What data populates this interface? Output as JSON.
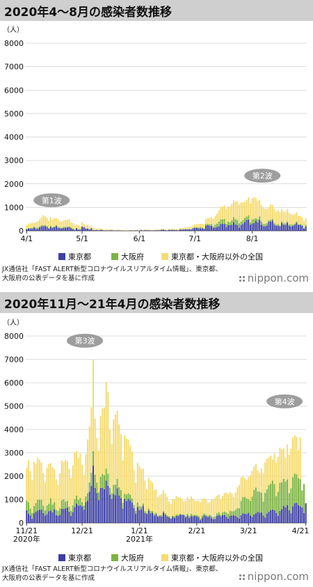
{
  "colors": {
    "tokyo": "#3d3fa3",
    "osaka": "#7cb342",
    "others": "#f5dc72",
    "title_bg": "#cfcfcf",
    "grid": "#bbbbbb"
  },
  "footer": {
    "source_1": "JX通信社「FAST ALERT新型コロナウイルスリアルタイム情報」、東京都、",
    "source_2": "大阪府の公表データを基に作成",
    "logo": "nippon.com"
  },
  "chart_data": [
    {
      "type": "bar",
      "stacked": true,
      "title": "2020年4～8月の感染者数推移",
      "ylabel": "（人）",
      "ylim": [
        0,
        8000
      ],
      "yticks": [
        "0",
        "1000",
        "2000",
        "3000",
        "4000",
        "5000",
        "6000",
        "7000",
        "8000"
      ],
      "xticks": [
        {
          "label": "4/1",
          "day": 0
        },
        {
          "label": "5/1",
          "day": 30
        },
        {
          "label": "6/1",
          "day": 61
        },
        {
          "label": "7/1",
          "day": 91
        },
        {
          "label": "8/1",
          "day": 122
        }
      ],
      "legend": [
        "東京都",
        "大阪府",
        "東京都・大阪府以外の全国"
      ],
      "annotations": [
        {
          "text": "第1波",
          "day": 14,
          "value": 1300
        },
        {
          "text": "第2波",
          "day": 128,
          "value": 2350
        }
      ],
      "series": [
        {
          "name": "東京都",
          "values": [
            66,
            97,
            89,
            84,
            143,
            83,
            79,
            144,
            181,
            189,
            197,
            166,
            91,
            161,
            127,
            149,
            201,
            123,
            107,
            102,
            123,
            132,
            134,
            161,
            103,
            72,
            39,
            112,
            47,
            46,
            165,
            154,
            91,
            87,
            57,
            104,
            26,
            28,
            36,
            16,
            41,
            30,
            10,
            15,
            11,
            16,
            24,
            13,
            9,
            15,
            10,
            11,
            5,
            8,
            2,
            5,
            14,
            11,
            8,
            17,
            13,
            5,
            34,
            12,
            28,
            20,
            26,
            12,
            13,
            18,
            22,
            25,
            24,
            47,
            48,
            27,
            16,
            41,
            35,
            39,
            29,
            31,
            14,
            57,
            55,
            54,
            60,
            58,
            57,
            48,
            107,
            124,
            131,
            111,
            102,
            106,
            75,
            224,
            243,
            206,
            206,
            119,
            143,
            165,
            188,
            290,
            293,
            293,
            168,
            237,
            238,
            260,
            366,
            266,
            238,
            131,
            248,
            286,
            367,
            463,
            472,
            258,
            309,
            331,
            429,
            360,
            462,
            258,
            197,
            188,
            222,
            389,
            385,
            429,
            260,
            206,
            220,
            188,
            339,
            258,
            247,
            339,
            212,
            186,
            207,
            256,
            339,
            236,
            250,
            212,
            95,
            182
          ]
        },
        {
          "name": "大阪府",
          "values": [
            25,
            10,
            34,
            41,
            27,
            52,
            48,
            41,
            59,
            55,
            46,
            38,
            24,
            50,
            24,
            32,
            42,
            54,
            38,
            21,
            40,
            27,
            44,
            22,
            44,
            25,
            11,
            8,
            20,
            16,
            23,
            8,
            18,
            24,
            10,
            3,
            6,
            0,
            2,
            3,
            4,
            5,
            1,
            6,
            1,
            2,
            4,
            1,
            0,
            2,
            3,
            1,
            0,
            0,
            0,
            1,
            2,
            0,
            1,
            1,
            1,
            0,
            0,
            0,
            2,
            2,
            3,
            0,
            0,
            3,
            1,
            1,
            0,
            3,
            0,
            1,
            2,
            4,
            3,
            6,
            4,
            1,
            2,
            2,
            2,
            6,
            3,
            9,
            22,
            19,
            14,
            33,
            11,
            25,
            45,
            24,
            24,
            62,
            49,
            72,
            85,
            66,
            123,
            141,
            207,
            204,
            193,
            211,
            131,
            150,
            129,
            187,
            216,
            222,
            225,
            188,
            141,
            172,
            185,
            145,
            182,
            88,
            177,
            175,
            110,
            131,
            151,
            139,
            99,
            96,
            108,
            66,
            83,
            79,
            65,
            56,
            59,
            43,
            58,
            60,
            66,
            58,
            55,
            86,
            47,
            52,
            66,
            42,
            39,
            43,
            22,
            69
          ]
        },
        {
          "name": "東京都・大阪府以外の全国",
          "values": [
            150,
            200,
            190,
            220,
            160,
            230,
            280,
            300,
            340,
            420,
            380,
            350,
            300,
            370,
            330,
            360,
            290,
            320,
            260,
            270,
            280,
            300,
            290,
            320,
            210,
            230,
            150,
            150,
            170,
            130,
            180,
            120,
            120,
            150,
            100,
            110,
            90,
            70,
            50,
            70,
            50,
            40,
            30,
            50,
            40,
            40,
            30,
            20,
            20,
            20,
            30,
            20,
            20,
            15,
            20,
            20,
            15,
            20,
            15,
            20,
            10,
            15,
            20,
            20,
            20,
            30,
            20,
            20,
            20,
            20,
            30,
            30,
            30,
            40,
            30,
            30,
            20,
            30,
            30,
            50,
            40,
            40,
            50,
            60,
            60,
            70,
            70,
            80,
            80,
            90,
            100,
            120,
            140,
            150,
            150,
            170,
            180,
            220,
            260,
            270,
            300,
            330,
            360,
            420,
            480,
            500,
            550,
            580,
            620,
            640,
            680,
            700,
            720,
            750,
            780,
            800,
            820,
            750,
            680,
            700,
            780,
            820,
            900,
            920,
            850,
            780,
            700,
            690,
            680,
            650,
            600,
            560,
            650,
            590,
            620,
            550,
            600,
            560,
            520,
            500,
            480,
            520,
            500,
            450,
            420,
            400,
            380,
            360,
            340,
            320,
            300,
            280
          ]
        }
      ]
    },
    {
      "type": "bar",
      "stacked": true,
      "title": "2020年11月～21年4月の感染者数推移",
      "ylabel": "（人）",
      "ylim": [
        0,
        8000
      ],
      "yticks": [
        "0",
        "1000",
        "2000",
        "3000",
        "4000",
        "5000",
        "6000",
        "7000",
        "8000"
      ],
      "xticks": [
        {
          "label": "11/21",
          "sub": "2020年",
          "day": 0
        },
        {
          "label": "12/21",
          "day": 30
        },
        {
          "label": "1/21",
          "sub": "2021年",
          "day": 61
        },
        {
          "label": "2/21",
          "day": 92
        },
        {
          "label": "3/21",
          "day": 120
        },
        {
          "label": "4/21",
          "day": 151
        }
      ],
      "legend": [
        "東京都",
        "大阪府",
        "東京都・大阪府以外の全国"
      ],
      "annotations": [
        {
          "text": "第3波",
          "day": 32,
          "value": 7800
        },
        {
          "text": "第4波",
          "day": 140,
          "value": 5200
        }
      ],
      "series": [
        {
          "name": "東京都",
          "values": [
            539,
            391,
            314,
            186,
            401,
            481,
            522,
            561,
            570,
            418,
            311,
            372,
            500,
            533,
            449,
            584,
            327,
            299,
            352,
            602,
            595,
            621,
            664,
            480,
            305,
            460,
            678,
            822,
            736,
            756,
            708,
            563,
            888,
            949,
            1337,
            1591,
            2447,
            1494,
            1278,
            970,
            1494,
            1502,
            1433,
            1809,
            1592,
            1204,
            1026,
            1240,
            1184,
            1485,
            1175,
            1070,
            618,
            1026,
            932,
            1028,
            969,
            868,
            633,
            393,
            676,
            555,
            577,
            729,
            429,
            371,
            536,
            412,
            434,
            307,
            369,
            266,
            291,
            276,
            445,
            353,
            275,
            237,
            178,
            270,
            213,
            303,
            293,
            355,
            337,
            329,
            232,
            316,
            213,
            294,
            279,
            301,
            272,
            237,
            116,
            232,
            335,
            285,
            239,
            293,
            203,
            152,
            175,
            303,
            340,
            279,
            330,
            342,
            256,
            186,
            300,
            316,
            323,
            304,
            243,
            187,
            335,
            409,
            393,
            376,
            430,
            313,
            256,
            364,
            414,
            475,
            437,
            445,
            317,
            234,
            399,
            475,
            545,
            570,
            537,
            421,
            306,
            510,
            591,
            729,
            667,
            759,
            543,
            405,
            711,
            843,
            861,
            759,
            709,
            655,
            420,
            843
          ]
        },
        {
          "name": "大阪府",
          "values": [
            415,
            490,
            306,
            243,
            318,
            367,
            463,
            436,
            413,
            315,
            225,
            377,
            324,
            525,
            335,
            304,
            231,
            219,
            274,
            367,
            416,
            287,
            276,
            227,
            211,
            294,
            336,
            352,
            254,
            314,
            183,
            187,
            251,
            326,
            400,
            560,
            629,
            574,
            450,
            333,
            483,
            592,
            607,
            521,
            517,
            299,
            244,
            389,
            452,
            404,
            348,
            337,
            249,
            218,
            283,
            246,
            240,
            180,
            132,
            123,
            198,
            161,
            116,
            103,
            79,
            57,
            85,
            100,
            80,
            90,
            72,
            42,
            47,
            68,
            56,
            62,
            50,
            48,
            26,
            42,
            73,
            55,
            56,
            30,
            33,
            39,
            61,
            72,
            72,
            95,
            61,
            43,
            70,
            65,
            61,
            82,
            72,
            65,
            69,
            52,
            83,
            85,
            109,
            111,
            120,
            73,
            125,
            136,
            189,
            197,
            223,
            186,
            180,
            250,
            389,
            436,
            606,
            701,
            718,
            666,
            581,
            626,
            873,
            1050,
            1099,
            878,
            899,
            837,
            594,
            1055,
            1040,
            1136,
            1135,
            1243,
            1130,
            719,
            1025,
            1209,
            1152,
            1153,
            1110,
            1099,
            724,
            1073,
            1242,
            1262,
            1223,
            1153,
            1161,
            733,
            1242
          ]
        },
        {
          "name": "東京都・大阪府以外の全国",
          "values": [
            1400,
            1800,
            1600,
            1400,
            1900,
            1700,
            1800,
            1700,
            1600,
            1400,
            1200,
            1600,
            1700,
            1500,
            1600,
            1400,
            1300,
            1100,
            1500,
            1700,
            1600,
            1800,
            1700,
            1600,
            1400,
            1700,
            2000,
            1900,
            1800,
            1900,
            1600,
            1300,
            1800,
            2300,
            2400,
            2800,
            3900,
            2400,
            1900,
            1800,
            2600,
            2800,
            2900,
            3700,
            3500,
            2500,
            2100,
            2800,
            3000,
            2900,
            2700,
            2400,
            1800,
            2500,
            2400,
            2300,
            2100,
            2000,
            1500,
            1200,
            1700,
            1700,
            1600,
            1500,
            1300,
            1000,
            1300,
            1300,
            1200,
            1000,
            1000,
            800,
            850,
            900,
            900,
            850,
            800,
            650,
            600,
            700,
            700,
            800,
            750,
            700,
            650,
            550,
            650,
            700,
            700,
            750,
            700,
            600,
            600,
            650,
            700,
            700,
            650,
            650,
            550,
            550,
            700,
            750,
            800,
            750,
            750,
            650,
            700,
            800,
            850,
            850,
            800,
            750,
            600,
            750,
            900,
            1000,
            1000,
            900,
            800,
            800,
            950,
            1100,
            1100,
            1000,
            1000,
            900,
            800,
            1050,
            1200,
            1300,
            1300,
            1200,
            1200,
            900,
            1300,
            1450,
            1500,
            1500,
            1400,
            1300,
            1000,
            1500,
            1650,
            1700,
            1700,
            1650,
            1600,
            1200,
            1800
          ]
        }
      ]
    }
  ]
}
